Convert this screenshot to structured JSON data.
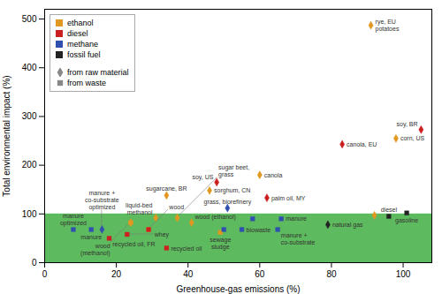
{
  "chart_data": {
    "type": "scatter",
    "xlabel": "Greenhouse-gas emissions (%)",
    "ylabel": "Total environmental impact (%)",
    "xlim": [
      0,
      108
    ],
    "ylim": [
      0,
      520
    ],
    "xticks": [
      0,
      20,
      40,
      60,
      80,
      100
    ],
    "yticks": [
      0,
      100,
      200,
      300,
      400,
      500
    ],
    "legend": "upper left",
    "shaded_region": {
      "ylim": [
        0,
        100
      ],
      "color": "#4db34d"
    },
    "series": [
      {
        "name": "ethanol",
        "color": "#e09820",
        "x": [
          24,
          24,
          29,
          31,
          34,
          37,
          41,
          46,
          49,
          60,
          92,
          98,
          91
        ],
        "values": [
          82,
          82,
          68,
          92,
          138,
          92,
          82,
          148,
          62,
          180,
          97,
          255,
          487
        ],
        "markers": [
          "diamond",
          "square",
          "square",
          "diamond",
          "diamond",
          "diamond",
          "diamond",
          "diamond",
          "square",
          "diamond",
          "diamond",
          "diamond",
          "diamond"
        ]
      },
      {
        "name": "diesel",
        "color": "#cc2020",
        "x": [
          18,
          23,
          29,
          34,
          48,
          62,
          83,
          105
        ],
        "values": [
          50,
          58,
          68,
          30,
          165,
          133,
          243,
          273
        ],
        "markers": [
          "square",
          "square",
          "square",
          "square",
          "diamond",
          "diamond",
          "diamond",
          "diamond"
        ]
      },
      {
        "name": "methane",
        "color": "#3050b0",
        "x": [
          8,
          13,
          16,
          50,
          51,
          55,
          58,
          65,
          66
        ],
        "values": [
          68,
          68,
          68,
          68,
          112,
          68,
          90,
          68,
          90
        ],
        "markers": [
          "square",
          "square",
          "diamond",
          "square",
          "diamond",
          "square",
          "square",
          "square",
          "square"
        ]
      },
      {
        "name": "fossil fuel",
        "color": "#222222",
        "x": [
          79,
          96,
          101
        ],
        "values": [
          78,
          95,
          102
        ],
        "markers": [
          "diamond",
          "square",
          "square"
        ]
      }
    ],
    "marker_legend": [
      {
        "name": "from raw material",
        "marker": "diamond",
        "color": "#888888"
      },
      {
        "name": "from waste",
        "marker": "square",
        "color": "#888888"
      }
    ],
    "annotations": [
      {
        "x": 8,
        "y": 68,
        "text": "manure\noptimized"
      },
      {
        "x": 13,
        "y": 68,
        "text": "manure"
      },
      {
        "x": 16,
        "y": 68,
        "text": "manure +\nco-substrate\noptimized"
      },
      {
        "x": 18,
        "y": 50,
        "text": "recycled oil, FR"
      },
      {
        "x": 24,
        "y": 82,
        "text": "wood\n(methanol)"
      },
      {
        "x": 31,
        "y": 92,
        "text": "liquid-bed\nmethanol"
      },
      {
        "x": 34,
        "y": 30,
        "text": "recycled oil"
      },
      {
        "x": 34,
        "y": 138,
        "text": "sugarcane, BR"
      },
      {
        "x": 23,
        "y": 58,
        "text": "whey"
      },
      {
        "x": 29,
        "y": 68,
        "text": "wood"
      },
      {
        "x": 37,
        "y": 92,
        "text": "sugar beet,\ngrass"
      },
      {
        "x": 41,
        "y": 82,
        "text": "wood (ethanol)"
      },
      {
        "x": 46,
        "y": 148,
        "text": "sorghum, CN"
      },
      {
        "x": 48,
        "y": 165,
        "text": "soy, US"
      },
      {
        "x": 49,
        "y": 62,
        "text": "sewage\nsludge"
      },
      {
        "x": 51,
        "y": 112,
        "text": "grass, biorefinery"
      },
      {
        "x": 55,
        "y": 68,
        "text": "biowaste"
      },
      {
        "x": 60,
        "y": 180,
        "text": "canola"
      },
      {
        "x": 62,
        "y": 133,
        "text": "palm oil, MY"
      },
      {
        "x": 65,
        "y": 68,
        "text": "manure +\nco-substrate"
      },
      {
        "x": 66,
        "y": 90,
        "text": "manure"
      },
      {
        "x": 79,
        "y": 78,
        "text": "natural gas"
      },
      {
        "x": 83,
        "y": 243,
        "text": "canola, EU"
      },
      {
        "x": 96,
        "y": 95,
        "text": "diesel"
      },
      {
        "x": 98,
        "y": 255,
        "text": "corn, US"
      },
      {
        "x": 101,
        "y": 102,
        "text": "gasoline"
      },
      {
        "x": 105,
        "y": 273,
        "text": "soy, BR"
      },
      {
        "x": 91,
        "y": 487,
        "text": "rye, EU\npotatoes"
      }
    ]
  }
}
